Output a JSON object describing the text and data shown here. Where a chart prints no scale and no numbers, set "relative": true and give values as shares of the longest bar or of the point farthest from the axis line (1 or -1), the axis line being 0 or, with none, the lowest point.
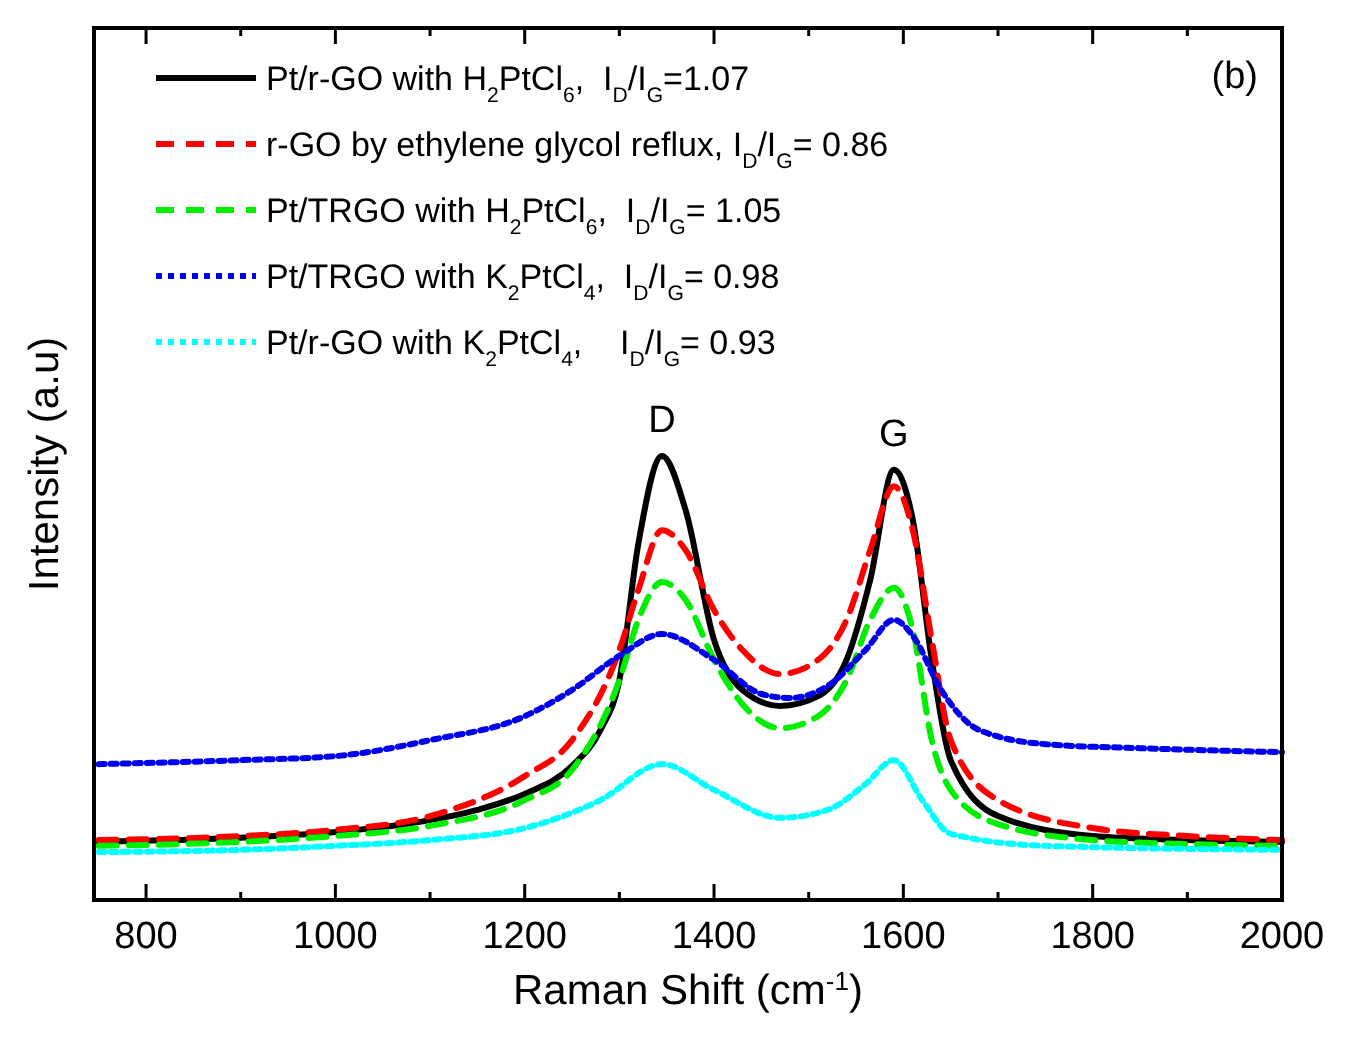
{
  "chart_data": {
    "type": "line",
    "relative": true,
    "xlabel": "Raman Shift (cm$^{-1}$)",
    "ylabel": "Intensity (a.u)",
    "xlim": [
      745,
      2000
    ],
    "xticks": [
      800,
      {
        "value": 900,
        "label": null
      },
      1000,
      {
        "value": 1100,
        "label": null
      },
      1200,
      {
        "value": 1300,
        "label": null
      },
      1400,
      {
        "value": 1500,
        "label": null
      },
      1600,
      {
        "value": 1700,
        "label": null
      },
      1800,
      {
        "value": 1900,
        "label": null
      },
      2000
    ],
    "legend": "top left",
    "annotations": [
      {
        "text": "D",
        "x": 1345,
        "y": 1.0
      },
      {
        "text": "G",
        "x": 1590,
        "y": 0.969
      },
      "(b)"
    ],
    "series": [
      {
        "name": "Pt/r-GO with H$_{2}$PtCl$_{6}$,  I$_{D}$/I$_{G}$=1.07",
        "color": "#000000",
        "line_style": "solid",
        "x": [
          750,
          900,
          1000,
          1100,
          1150,
          1200,
          1250,
          1280,
          1300,
          1320,
          1345,
          1370,
          1400,
          1430,
          1470,
          1510,
          1540,
          1565,
          1590,
          1610,
          1630,
          1650,
          1700,
          1800,
          1900,
          2000
        ],
        "values": [
          0.131,
          0.14,
          0.153,
          0.18,
          0.203,
          0.239,
          0.302,
          0.383,
          0.495,
          0.802,
          1.0,
          0.878,
          0.586,
          0.473,
          0.437,
          0.459,
          0.541,
          0.721,
          0.969,
          0.856,
          0.541,
          0.315,
          0.189,
          0.144,
          0.135,
          0.131
        ]
      },
      {
        "name": "r-GO by ethylene glycol reflux, I$_{D}$/I$_{G}$= 0.86",
        "color": "#ff0000",
        "line_style": "dashed",
        "x": [
          750,
          900,
          1000,
          1100,
          1200,
          1250,
          1300,
          1320,
          1345,
          1370,
          1400,
          1430,
          1470,
          1510,
          1540,
          1565,
          1590,
          1610,
          1630,
          1650,
          1700,
          1800,
          1900,
          2000
        ],
        "values": [
          0.135,
          0.144,
          0.158,
          0.189,
          0.279,
          0.36,
          0.563,
          0.698,
          0.833,
          0.788,
          0.653,
          0.563,
          0.509,
          0.541,
          0.631,
          0.788,
          0.932,
          0.833,
          0.586,
          0.36,
          0.225,
          0.162,
          0.144,
          0.135
        ]
      },
      {
        "name": "Pt/TRGO with H$_{2}$PtCl$_{6}$,  I$_{D}$/I$_{G}$= 1.05",
        "color": "#00ee00",
        "line_style": "dashed",
        "x": [
          750,
          900,
          1000,
          1100,
          1200,
          1250,
          1300,
          1320,
          1345,
          1370,
          1400,
          1430,
          1470,
          1510,
          1540,
          1565,
          1590,
          1610,
          1630,
          1650,
          1700,
          1800,
          1900,
          2000
        ],
        "values": [
          0.122,
          0.131,
          0.144,
          0.167,
          0.225,
          0.293,
          0.495,
          0.631,
          0.716,
          0.676,
          0.541,
          0.441,
          0.387,
          0.414,
          0.495,
          0.631,
          0.703,
          0.608,
          0.36,
          0.248,
          0.171,
          0.135,
          0.126,
          0.122
        ]
      },
      {
        "name": "Pt/TRGO with K$_{2}$PtCl$_{4}$,  I$_{D}$/I$_{G}$= 0.98",
        "color": "#0000ee",
        "line_style": "dotted",
        "x": [
          750,
          900,
          1000,
          1100,
          1200,
          1250,
          1300,
          1345,
          1400,
          1450,
          1480,
          1520,
          1560,
          1590,
          1610,
          1640,
          1680,
          1750,
          1850,
          2000
        ],
        "values": [
          0.306,
          0.315,
          0.324,
          0.36,
          0.414,
          0.473,
          0.55,
          0.599,
          0.541,
          0.464,
          0.455,
          0.482,
          0.563,
          0.631,
          0.595,
          0.473,
          0.383,
          0.351,
          0.342,
          0.333
        ]
      },
      {
        "name": "Pt/r-GO with K$_{2}$PtCl$_{4}$,    I$_{D}$/I$_{G}$= 0.93",
        "color": "#00ffff",
        "line_style": "dotted",
        "x": [
          750,
          900,
          1000,
          1100,
          1200,
          1280,
          1345,
          1400,
          1470,
          1520,
          1560,
          1590,
          1620,
          1650,
          1750,
          2000
        ],
        "values": [
          0.108,
          0.113,
          0.122,
          0.135,
          0.162,
          0.225,
          0.306,
          0.248,
          0.185,
          0.203,
          0.261,
          0.315,
          0.225,
          0.149,
          0.122,
          0.113
        ]
      }
    ]
  }
}
